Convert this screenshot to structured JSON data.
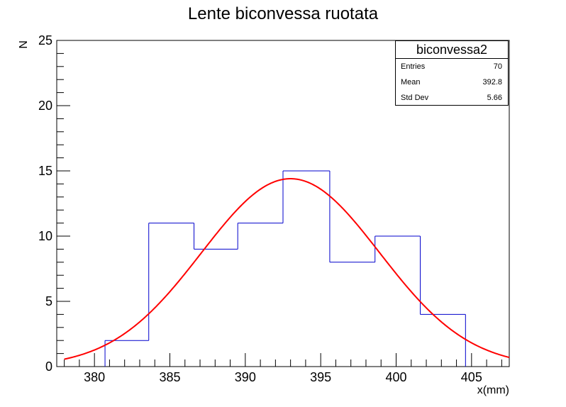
{
  "chart_data": {
    "type": "bar",
    "title": "Lente biconvessa ruotata",
    "xlabel": "x(mm)",
    "ylabel": "N",
    "xlim": [
      377.5,
      407.5
    ],
    "ylim": [
      0,
      25
    ],
    "xticks": [
      380,
      385,
      390,
      395,
      400,
      405
    ],
    "yticks": [
      0,
      5,
      10,
      15,
      20,
      25
    ],
    "histogram": {
      "bin_edges": [
        380.7,
        383.6,
        386.6,
        389.5,
        392.5,
        395.6,
        398.6,
        401.6,
        404.6
      ],
      "counts": [
        2,
        11,
        9,
        11,
        15,
        8,
        10,
        4
      ],
      "color": "#0000cc"
    },
    "fit": {
      "model": "gaussian",
      "constant": 14.4,
      "mean": 393.0,
      "sigma": 5.9,
      "color": "#ff0000"
    },
    "stats_box": {
      "name": "biconvessa2",
      "rows": [
        {
          "label": "Entries",
          "value": "70"
        },
        {
          "label": "Mean",
          "value": "392.8"
        },
        {
          "label": "Std Dev",
          "value": "5.66"
        }
      ]
    }
  }
}
